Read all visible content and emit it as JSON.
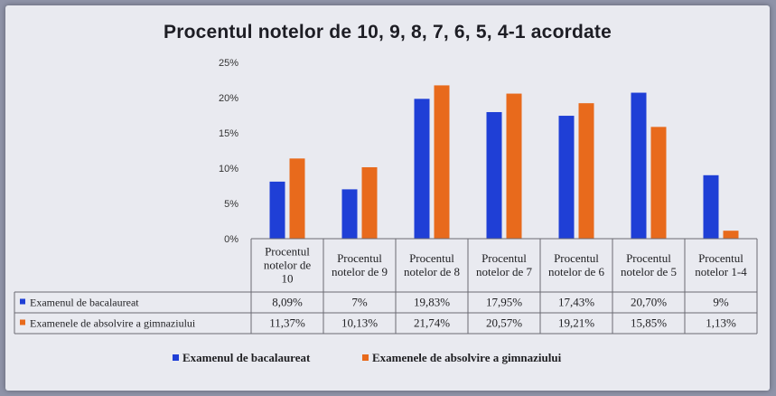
{
  "chart_data": {
    "type": "bar",
    "title": "Procentul notelor de 10, 9, 8, 7, 6, 5, 4-1 acordate",
    "categories": [
      [
        "Procentul",
        "notelor de",
        "10"
      ],
      [
        "Procentul",
        "notelor de 9"
      ],
      [
        "Procentul",
        "notelor de 8"
      ],
      [
        "Procentul",
        "notelor de 7"
      ],
      [
        "Procentul",
        "notelor de 6"
      ],
      [
        "Procentul",
        "notelor de 5"
      ],
      [
        "Procentul",
        "notelor 1-4"
      ]
    ],
    "series": [
      {
        "name": "Examenul de bacalaureat",
        "color": "#1f3fd6",
        "values": [
          8.09,
          7,
          19.83,
          17.95,
          17.43,
          20.7,
          9
        ],
        "labels": [
          "8,09%",
          "7%",
          "19,83%",
          "17,95%",
          "17,43%",
          "20,70%",
          "9%"
        ]
      },
      {
        "name": "Examenele de absolvire a gimnaziului",
        "color": "#e86a1c",
        "values": [
          11.37,
          10.13,
          21.74,
          20.57,
          19.21,
          15.85,
          1.13
        ],
        "labels": [
          "11,37%",
          "10,13%",
          "21,74%",
          "20,57%",
          "19,21%",
          "15,85%",
          "1,13%"
        ]
      }
    ],
    "yticks": [
      "0%",
      "5%",
      "10%",
      "15%",
      "20%",
      "25%"
    ],
    "ylim": [
      0,
      25
    ],
    "grid": false,
    "legend_position": "bottom",
    "data_table": true
  }
}
